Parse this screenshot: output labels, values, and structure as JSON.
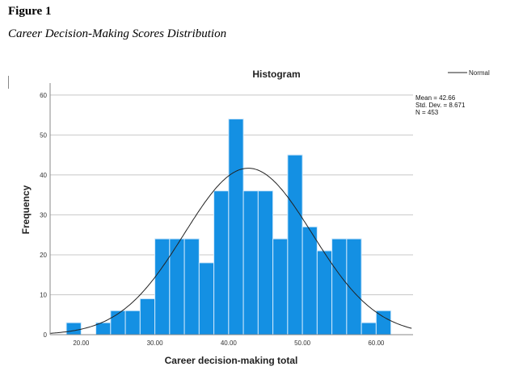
{
  "figure_label": "Figure 1",
  "caption": "Career Decision-Making Scores Distribution",
  "chart_data": {
    "type": "bar",
    "title": "Histogram",
    "xlabel": "Career decision-making total",
    "ylabel": "Frequency",
    "bin_width": 2,
    "bin_starts": [
      18,
      20,
      22,
      24,
      26,
      28,
      30,
      32,
      34,
      36,
      38,
      40,
      42,
      44,
      46,
      48,
      50,
      52,
      54,
      56,
      58,
      60
    ],
    "values": [
      3,
      0,
      3,
      6,
      6,
      9,
      24,
      24,
      24,
      18,
      36,
      54,
      36,
      36,
      24,
      45,
      27,
      21,
      24,
      24,
      3,
      6
    ],
    "xlim": [
      15.8,
      65
    ],
    "ylim": [
      0,
      63
    ],
    "xticks": [
      "20.00",
      "30.00",
      "40.00",
      "50.00",
      "60.00"
    ],
    "xtick_values": [
      20,
      30,
      40,
      50,
      60
    ],
    "yticks": [
      0,
      10,
      20,
      30,
      40,
      50,
      60
    ],
    "grid": true,
    "bar_color": "#1490E3",
    "legend": {
      "label": "Normal",
      "placement": "top-right"
    },
    "normal_curve": {
      "mean": 42.66,
      "sd": 8.671,
      "n": 453
    },
    "stats": [
      "Mean = 42.66",
      "Std. Dev. = 8.671",
      "N = 453"
    ]
  }
}
